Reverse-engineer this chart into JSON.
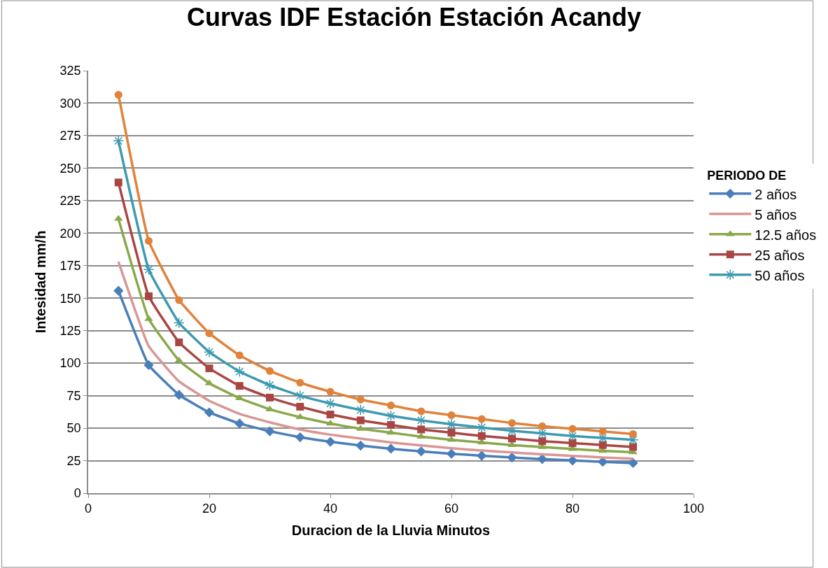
{
  "chart_data": {
    "type": "line",
    "title": "Curvas IDF Estación Estación Acandy",
    "xlabel": "Duracion de la Lluvia Minutos",
    "ylabel": "Intesidad mm/h",
    "legend_title": "PERIODO DE",
    "x": [
      5,
      10,
      15,
      20,
      25,
      30,
      35,
      40,
      45,
      50,
      55,
      60,
      65,
      70,
      75,
      80,
      85,
      90
    ],
    "series": [
      {
        "name": "2 años",
        "color": "#4a7ebb",
        "marker": "diamond",
        "values": [
          155.7,
          98.5,
          75.6,
          62.1,
          53.6,
          47.6,
          43,
          39.5,
          36.6,
          34.2,
          32.1,
          30.3,
          28.8,
          27.4,
          26.2,
          25.1,
          24.1,
          23.2
        ]
      },
      {
        "name": "5 años",
        "color": "#d99694",
        "marker": "none",
        "values": [
          178,
          113,
          86,
          71,
          61,
          54.5,
          49,
          45,
          42,
          39,
          36.7,
          34.6,
          32.8,
          31.3,
          29.9,
          28.7,
          27.5,
          26.5
        ]
      },
      {
        "name": "12.5 años",
        "color": "#8aa84a",
        "marker": "triangle",
        "values": [
          211,
          134,
          102,
          84.5,
          73,
          64.5,
          58.5,
          53.5,
          49.5,
          46.5,
          43.5,
          41,
          39,
          37,
          35.5,
          34,
          32.5,
          31.5
        ]
      },
      {
        "name": "25 años",
        "color": "#a94643",
        "marker": "square",
        "values": [
          239,
          151.5,
          116,
          96,
          82.5,
          73.5,
          66.5,
          60.5,
          56,
          52.5,
          49,
          46.5,
          44,
          42,
          40,
          38.5,
          37,
          35.5
        ]
      },
      {
        "name": "50 años",
        "color": "#3d9ab0",
        "marker": "cross",
        "values": [
          271,
          172,
          131,
          108.5,
          93.5,
          83,
          75,
          69,
          64,
          59.5,
          56,
          53,
          50.5,
          48,
          46,
          44,
          42.5,
          41
        ]
      },
      {
        "color": "#e0823a",
        "marker": "circle",
        "values": [
          306.5,
          194,
          148.5,
          123,
          106,
          94,
          85,
          78,
          72,
          67.5,
          63,
          60,
          57,
          54,
          51.5,
          49.5,
          47.5,
          45.5
        ]
      }
    ],
    "xlim": [
      0,
      100
    ],
    "xticks": [
      0,
      20,
      40,
      60,
      80,
      100
    ],
    "ylim": [
      0,
      325
    ],
    "yticks": [
      0,
      25,
      50,
      75,
      100,
      125,
      150,
      175,
      200,
      225,
      250,
      275,
      300,
      325
    ],
    "grid": "y",
    "legend": "right"
  }
}
